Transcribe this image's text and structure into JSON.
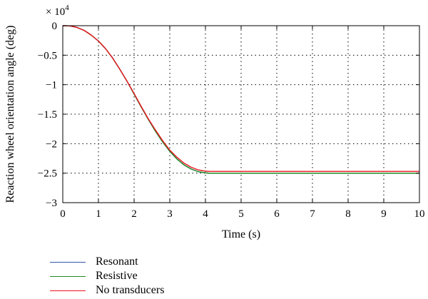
{
  "chart_data": {
    "type": "line",
    "title": "",
    "xlabel": "Time (s)",
    "ylabel": "Reaction wheel orientation angle (deg)",
    "y_multiplier_prefix": "× 10",
    "y_multiplier_exponent": "4",
    "xlim": [
      0,
      10
    ],
    "ylim": [
      -3,
      0
    ],
    "xticks": [
      0,
      1,
      2,
      3,
      4,
      5,
      6,
      7,
      8,
      9,
      10
    ],
    "yticks": [
      0,
      -0.5,
      -1,
      -1.5,
      -2,
      -2.5,
      -3
    ],
    "ytick_labels": [
      "0",
      "−0.5",
      "−1",
      "−1.5",
      "−2",
      "−2.5",
      "−3"
    ],
    "grid": true,
    "legend_position": "below",
    "series": [
      {
        "name": "Resonant",
        "color": "#3355aa",
        "x": [
          0,
          0.2,
          0.4,
          0.6,
          0.8,
          1.0,
          1.2,
          1.4,
          1.6,
          1.8,
          2.0,
          2.2,
          2.4,
          2.6,
          2.8,
          3.0,
          3.2,
          3.4,
          3.6,
          3.8,
          4.0,
          4.1,
          4.2,
          5,
          6,
          7,
          8,
          9,
          10
        ],
        "y": [
          0,
          -0.004,
          -0.03,
          -0.08,
          -0.16,
          -0.26,
          -0.39,
          -0.55,
          -0.74,
          -0.94,
          -1.16,
          -1.38,
          -1.59,
          -1.79,
          -1.97,
          -2.13,
          -2.26,
          -2.36,
          -2.43,
          -2.475,
          -2.495,
          -2.5,
          -2.5,
          -2.5,
          -2.5,
          -2.5,
          -2.5,
          -2.5,
          -2.5
        ]
      },
      {
        "name": "Resistive",
        "color": "#228b22",
        "x": [
          0,
          0.2,
          0.4,
          0.6,
          0.8,
          1.0,
          1.2,
          1.4,
          1.6,
          1.8,
          2.0,
          2.2,
          2.4,
          2.6,
          2.8,
          3.0,
          3.2,
          3.4,
          3.6,
          3.8,
          4.0,
          4.1,
          4.2,
          5,
          6,
          7,
          8,
          9,
          10
        ],
        "y": [
          0,
          -0.004,
          -0.03,
          -0.08,
          -0.16,
          -0.26,
          -0.39,
          -0.55,
          -0.74,
          -0.94,
          -1.16,
          -1.38,
          -1.59,
          -1.79,
          -1.97,
          -2.13,
          -2.26,
          -2.36,
          -2.43,
          -2.475,
          -2.495,
          -2.5,
          -2.5,
          -2.5,
          -2.5,
          -2.5,
          -2.5,
          -2.5,
          -2.5
        ]
      },
      {
        "name": "No transducers",
        "color": "#e8141c",
        "x": [
          0,
          0.2,
          0.4,
          0.6,
          0.8,
          1.0,
          1.2,
          1.4,
          1.6,
          1.8,
          2.0,
          2.2,
          2.4,
          2.6,
          2.8,
          3.0,
          3.2,
          3.4,
          3.6,
          3.8,
          4.0,
          4.1,
          4.2,
          5,
          6,
          7,
          8,
          9,
          10
        ],
        "y": [
          0,
          -0.004,
          -0.03,
          -0.08,
          -0.16,
          -0.26,
          -0.39,
          -0.55,
          -0.74,
          -0.94,
          -1.15,
          -1.37,
          -1.58,
          -1.77,
          -1.95,
          -2.11,
          -2.23,
          -2.33,
          -2.4,
          -2.445,
          -2.465,
          -2.47,
          -2.47,
          -2.47,
          -2.47,
          -2.47,
          -2.47,
          -2.47,
          -2.47
        ]
      }
    ]
  }
}
